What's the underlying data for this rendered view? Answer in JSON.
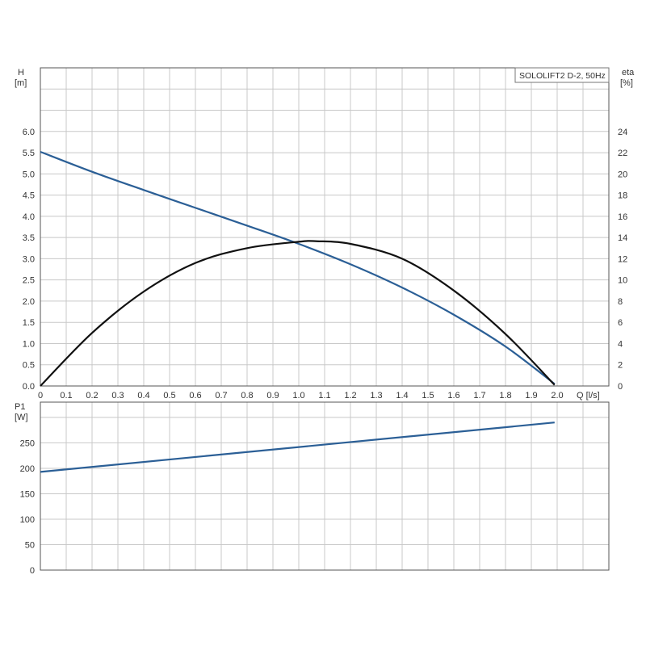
{
  "chart_data": [
    {
      "type": "line",
      "title": "",
      "legend_box": "SOLOLIFT2 D-2, 50Hz",
      "x": {
        "label": "Q [l/s]",
        "range": [
          0,
          2.2
        ],
        "ticks": [
          "0",
          "0.1",
          "0.2",
          "0.3",
          "0.4",
          "0.5",
          "0.6",
          "0.7",
          "0.8",
          "0.9",
          "1.0",
          "1.1",
          "1.2",
          "1.3",
          "1.4",
          "1.5",
          "1.6",
          "1.7",
          "1.8",
          "1.9",
          "2.0"
        ]
      },
      "y_left": {
        "label_name": "H",
        "label_unit": "[m]",
        "range": [
          0,
          7.5
        ],
        "ticks": [
          "0.0",
          "0.5",
          "1.0",
          "1.5",
          "2.0",
          "2.5",
          "3.0",
          "3.5",
          "4.0",
          "4.5",
          "5.0",
          "5.5",
          "6.0"
        ]
      },
      "y_right": {
        "label_name": "eta",
        "label_unit": "[%]",
        "range": [
          0,
          30
        ],
        "ticks": [
          "0",
          "2",
          "4",
          "6",
          "8",
          "10",
          "12",
          "14",
          "16",
          "18",
          "20",
          "22",
          "24"
        ]
      },
      "grid": true,
      "series": [
        {
          "axis": "left",
          "color": "#2b5f96",
          "x": [
            0,
            0.2,
            0.4,
            0.6,
            0.8,
            1.0,
            1.2,
            1.4,
            1.6,
            1.8,
            1.99
          ],
          "y": [
            5.52,
            5.05,
            4.62,
            4.2,
            3.78,
            3.35,
            2.87,
            2.32,
            1.68,
            0.93,
            0.05
          ]
        },
        {
          "axis": "right",
          "color": "#111111",
          "x": [
            0,
            0.2,
            0.4,
            0.6,
            0.8,
            1.0,
            1.07,
            1.2,
            1.4,
            1.6,
            1.8,
            1.99
          ],
          "y": [
            0,
            5.0,
            8.9,
            11.6,
            13.0,
            13.6,
            13.65,
            13.4,
            12.0,
            9.0,
            4.9,
            0.1
          ]
        }
      ]
    },
    {
      "type": "line",
      "title": "",
      "x": {
        "label": "",
        "range": [
          0,
          2.2
        ]
      },
      "y_left": {
        "label_name": "P1",
        "label_unit": "[W]",
        "range": [
          0,
          330
        ],
        "ticks": [
          "0",
          "50",
          "100",
          "150",
          "200",
          "250"
        ]
      },
      "grid": true,
      "series": [
        {
          "axis": "left",
          "color": "#2b5f96",
          "x": [
            0,
            1.99
          ],
          "y": [
            193,
            290
          ]
        }
      ]
    }
  ]
}
